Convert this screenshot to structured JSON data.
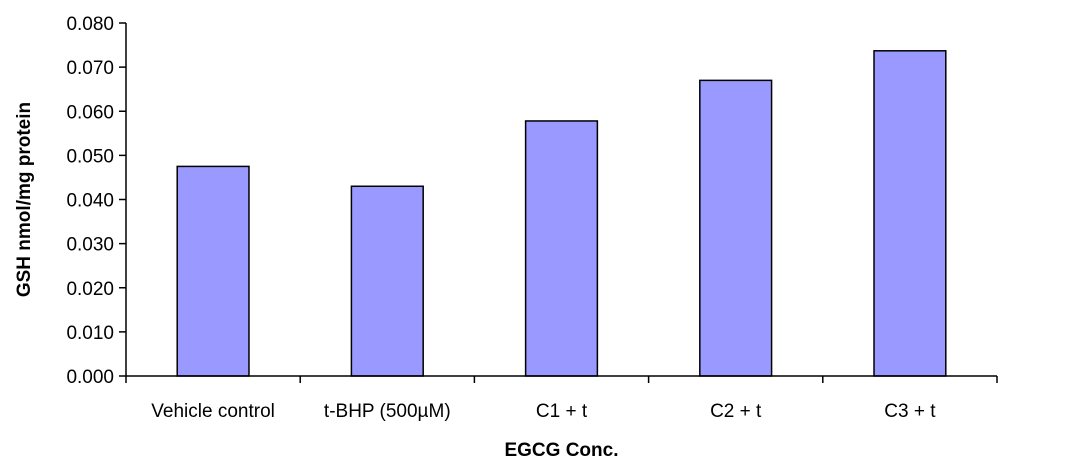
{
  "chart_data": {
    "type": "bar",
    "title": "",
    "xlabel": "EGCG Conc.",
    "ylabel": "GSH nmol/mg protein",
    "categories": [
      "Vehicle control",
      "t-BHP (500µM)",
      "C1 + t",
      "C2 + t",
      "C3 + t"
    ],
    "values": [
      0.0475,
      0.043,
      0.0578,
      0.067,
      0.0737
    ],
    "ylim": [
      0,
      0.08
    ],
    "ytick_values": [
      0,
      0.01,
      0.02,
      0.03,
      0.04,
      0.05,
      0.06,
      0.07,
      0.08
    ],
    "ytick_labels": [
      "0.000",
      "0.010",
      "0.020",
      "0.030",
      "0.040",
      "0.050",
      "0.060",
      "0.070",
      "0.080"
    ],
    "grid": false,
    "legend": "none",
    "bar_color": "#9999ff",
    "bar_outline_color": "#000000"
  }
}
